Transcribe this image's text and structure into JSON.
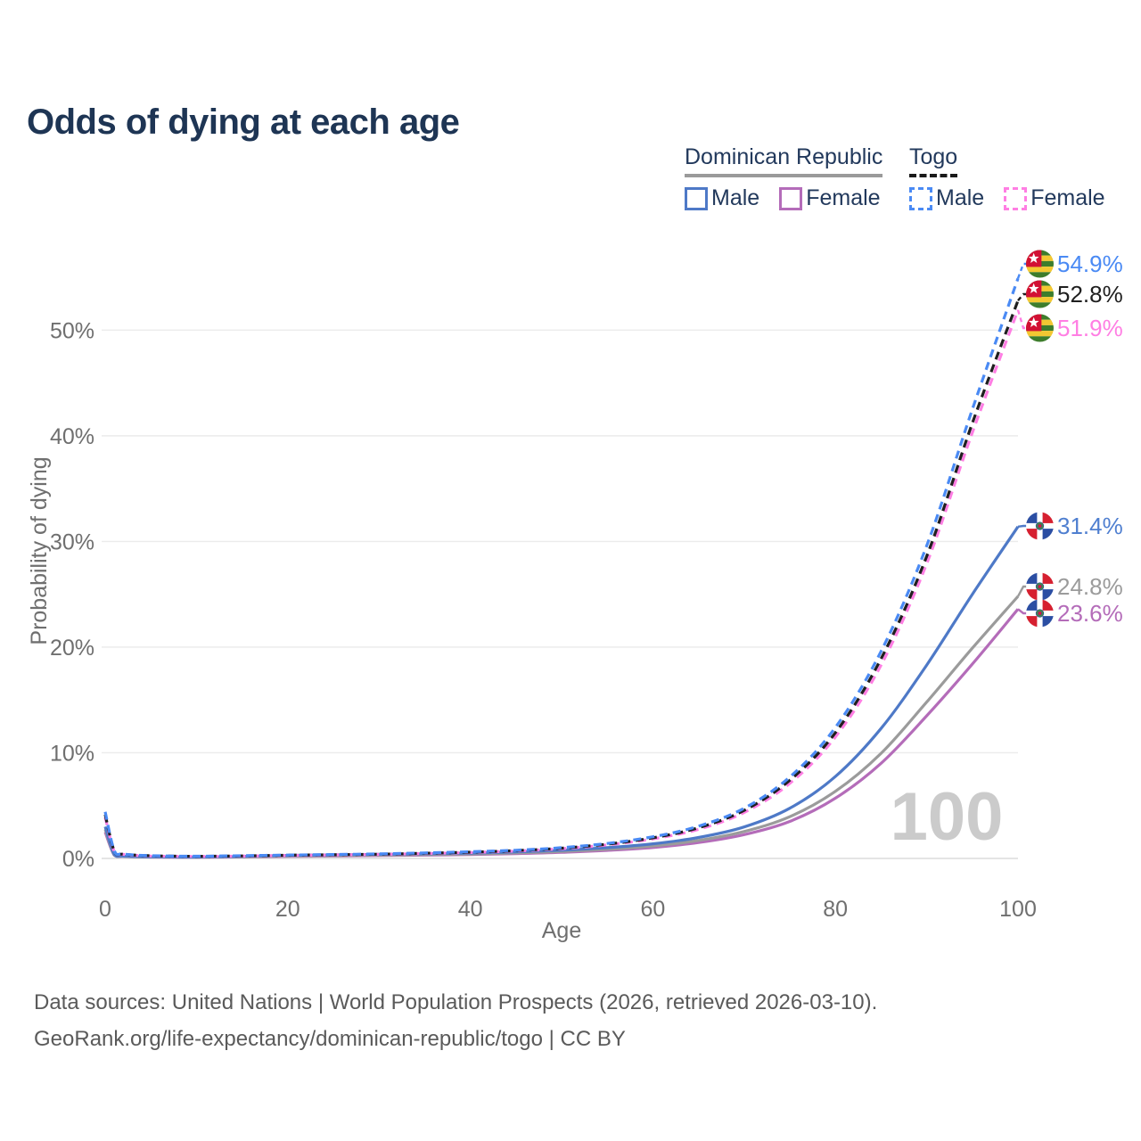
{
  "title": "Odds of dying at each age",
  "legend": {
    "groups": [
      {
        "name": "Dominican Republic",
        "underline_style": "solid",
        "underline_color": "#9a9a9a",
        "items": [
          {
            "label": "Male",
            "color": "#4e79c7",
            "dashed": false
          },
          {
            "label": "Female",
            "color": "#b46cb9",
            "dashed": false
          }
        ]
      },
      {
        "name": "Togo",
        "underline_style": "dashed",
        "underline_color": "#1a1a1a",
        "items": [
          {
            "label": "Male",
            "color": "#4a8af4",
            "dashed": true
          },
          {
            "label": "Female",
            "color": "#ff7ee3",
            "dashed": true
          }
        ]
      }
    ]
  },
  "chart_data": {
    "type": "line",
    "title": "Odds of dying at each age",
    "xlabel": "Age",
    "ylabel": "Probability of dying",
    "x_ticks": [
      0,
      20,
      40,
      60,
      80,
      100
    ],
    "y_ticks_percent": [
      0,
      10,
      20,
      30,
      40,
      50
    ],
    "xlim": [
      0,
      100
    ],
    "ylim_percent": [
      0,
      56
    ],
    "grid": true,
    "legend_position": "top-right",
    "watermark": "100",
    "x": [
      0,
      1,
      2,
      5,
      10,
      15,
      20,
      25,
      30,
      35,
      40,
      45,
      50,
      55,
      60,
      65,
      70,
      75,
      80,
      85,
      90,
      95,
      100
    ],
    "series": [
      {
        "name": "Togo Male",
        "country": "Togo",
        "sex": "Male",
        "color": "#4a8af4",
        "label_color": "#4a8af4",
        "dashed": true,
        "flag": "togo",
        "end_label": "54.9%",
        "values": [
          4.4,
          0.75,
          0.42,
          0.26,
          0.21,
          0.26,
          0.32,
          0.37,
          0.43,
          0.52,
          0.63,
          0.78,
          1.02,
          1.42,
          2.05,
          3.05,
          4.75,
          7.7,
          12.4,
          19.6,
          29.6,
          42.5,
          54.9
        ]
      },
      {
        "name": "Togo Both sexes",
        "country": "Togo",
        "sex": "Both",
        "color": "#1f1f1f",
        "label_color": "#1f1f1f",
        "dashed": true,
        "flag": "togo",
        "end_label": "52.8%",
        "values": [
          4.15,
          0.7,
          0.4,
          0.25,
          0.2,
          0.24,
          0.3,
          0.35,
          0.4,
          0.49,
          0.59,
          0.74,
          0.97,
          1.35,
          1.95,
          2.9,
          4.55,
          7.4,
          11.9,
          18.9,
          28.6,
          41.2,
          52.8
        ]
      },
      {
        "name": "Togo Female",
        "country": "Togo",
        "sex": "Female",
        "color": "#ff7ee3",
        "label_color": "#ff7ee3",
        "dashed": true,
        "flag": "togo",
        "end_label": "51.9%",
        "values": [
          3.9,
          0.66,
          0.38,
          0.23,
          0.19,
          0.22,
          0.28,
          0.33,
          0.38,
          0.46,
          0.56,
          0.7,
          0.92,
          1.28,
          1.85,
          2.75,
          4.35,
          7.1,
          11.5,
          18.3,
          27.9,
          40.3,
          51.9
        ]
      },
      {
        "name": "Dominican Republic Male",
        "country": "Dominican Republic",
        "sex": "Male",
        "color": "#4e79c7",
        "label_color": "#4f7fd0",
        "dashed": false,
        "flag": "dominican-republic",
        "end_label": "31.4%",
        "values": [
          3.0,
          0.36,
          0.22,
          0.15,
          0.13,
          0.19,
          0.29,
          0.34,
          0.39,
          0.44,
          0.51,
          0.62,
          0.78,
          1.02,
          1.38,
          1.98,
          2.98,
          4.75,
          7.75,
          12.3,
          18.3,
          25.0,
          31.4
        ]
      },
      {
        "name": "Dominican Republic Both sexes",
        "country": "Dominican Republic",
        "sex": "Both",
        "color": "#9b9b9b",
        "label_color": "#9b9b9b",
        "dashed": false,
        "flag": "dominican-republic",
        "end_label": "24.8%",
        "values": [
          2.75,
          0.33,
          0.2,
          0.14,
          0.12,
          0.16,
          0.23,
          0.27,
          0.31,
          0.36,
          0.42,
          0.52,
          0.66,
          0.87,
          1.18,
          1.7,
          2.55,
          3.95,
          6.35,
          9.95,
          14.8,
          19.9,
          24.8
        ]
      },
      {
        "name": "Dominican Republic Female",
        "country": "Dominican Republic",
        "sex": "Female",
        "color": "#b46cb9",
        "label_color": "#b46cb9",
        "dashed": false,
        "flag": "dominican-republic",
        "end_label": "23.6%",
        "values": [
          2.5,
          0.3,
          0.19,
          0.13,
          0.11,
          0.14,
          0.19,
          0.23,
          0.27,
          0.31,
          0.37,
          0.45,
          0.57,
          0.76,
          1.03,
          1.5,
          2.25,
          3.5,
          5.7,
          9.0,
          13.5,
          18.4,
          23.6
        ]
      }
    ]
  },
  "footer": {
    "line1": "Data sources: United Nations | World Population Prospects (2026, retrieved 2026-03-10).",
    "line2": "GeoRank.org/life-expectancy/dominican-republic/togo | CC BY"
  }
}
